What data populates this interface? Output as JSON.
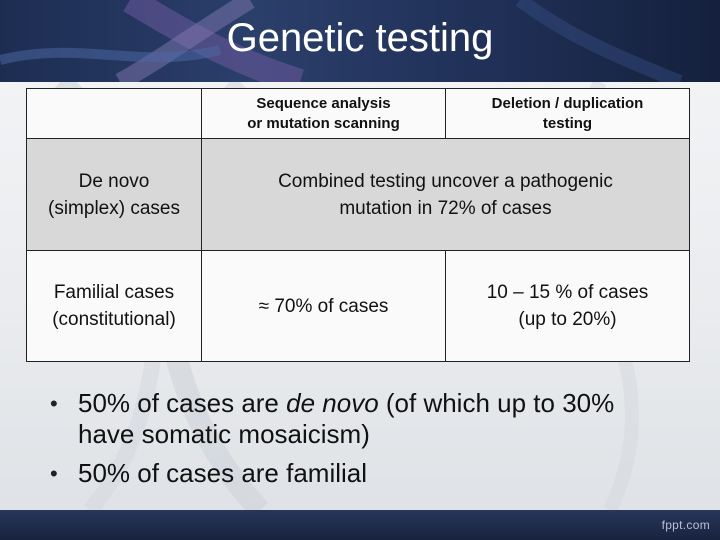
{
  "slide": {
    "title": "Genetic testing",
    "table": {
      "header": {
        "col1": "",
        "col2_line1": "Sequence analysis",
        "col2_line2": "or mutation scanning",
        "col3_line1": "Deletion / duplication",
        "col3_line2": "testing"
      },
      "rows": [
        {
          "label_line1": "De novo",
          "label_line2": "(simplex) cases",
          "merged_line1": "Combined testing uncover a pathogenic",
          "merged_line2": "mutation in 72% of cases"
        },
        {
          "label_line1": "Familial cases",
          "label_line2": "(constitutional)",
          "col2": "≈ 70% of cases",
          "col3_line1": "10 – 15 % of cases",
          "col3_line2": "(up to 20%)"
        }
      ]
    },
    "bullets": [
      {
        "marker": "•",
        "before": "50% of cases are ",
        "emphasis": "de novo",
        "after_line1": " (of which up to 30%",
        "line2": "have somatic mosaicism)"
      },
      {
        "marker": "•",
        "text": "50% of cases are familial"
      }
    ],
    "footer": {
      "brand": "fppt.com"
    }
  }
}
